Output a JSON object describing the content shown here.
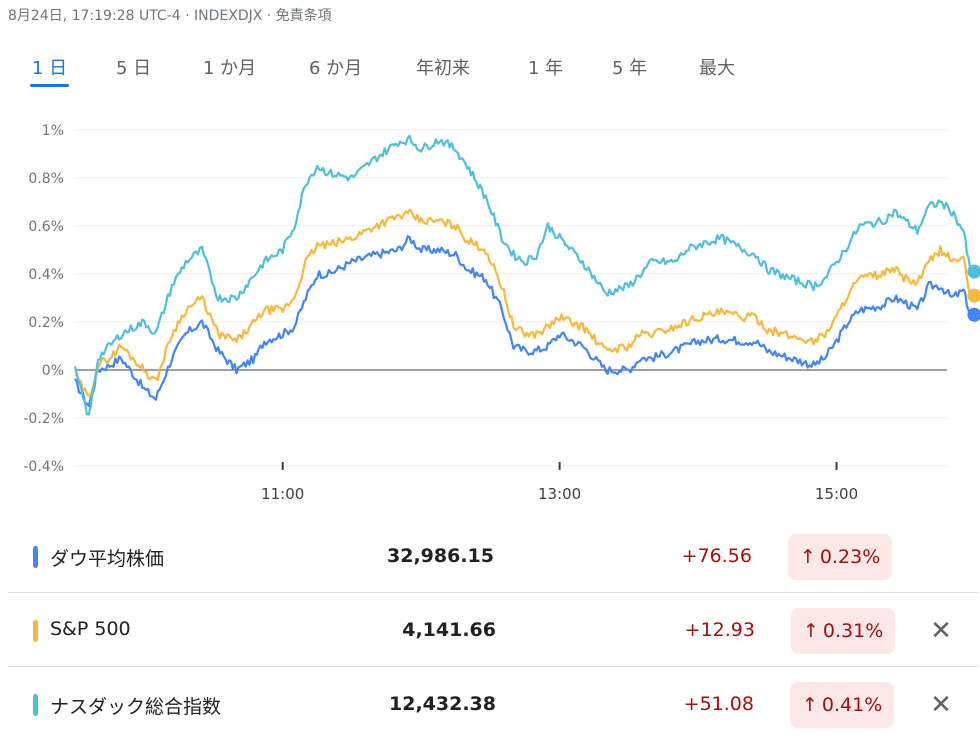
{
  "header": {
    "text": "8月24日, 17:19:28 UTC-4 · INDEXDJX · 免責条項"
  },
  "tabs": [
    {
      "label": "1 日",
      "active": true
    },
    {
      "label": "5 日",
      "active": false
    },
    {
      "label": "1 か月",
      "active": false
    },
    {
      "label": "6 か月",
      "active": false
    },
    {
      "label": "年初来",
      "active": false
    },
    {
      "label": "1 年",
      "active": false
    },
    {
      "label": "5 年",
      "active": false
    },
    {
      "label": "最大",
      "active": false
    }
  ],
  "chart_data": {
    "type": "line",
    "xlabel": "",
    "ylabel": "",
    "x_ticks": [
      "11:00",
      "13:00",
      "15:00"
    ],
    "x_tick_minutes": [
      660,
      780,
      900
    ],
    "xlim_minutes": [
      570,
      960
    ],
    "y_ticks": [
      "1%",
      "0.8%",
      "0.6%",
      "0.4%",
      "0.2%",
      "0%",
      "-0.2%",
      "-0.4%"
    ],
    "y_tick_values": [
      1.0,
      0.8,
      0.6,
      0.4,
      0.2,
      0.0,
      -0.2,
      -0.4
    ],
    "ylim": [
      -0.4,
      1.0
    ],
    "zero_line": 0,
    "grid": true,
    "series": [
      {
        "name": "ダウ平均株価",
        "color": "#4285f4",
        "x": [
          570,
          576,
          580,
          585,
          590,
          600,
          605,
          612,
          618,
          625,
          632,
          640,
          648,
          652,
          660,
          665,
          670,
          675,
          680,
          690,
          700,
          710,
          715,
          720,
          728,
          735,
          740,
          748,
          755,
          760,
          765,
          770,
          775,
          780,
          790,
          800,
          810,
          815,
          820,
          830,
          835,
          840,
          850,
          860,
          865,
          870,
          880,
          890,
          895,
          900,
          905,
          910,
          920,
          925,
          930,
          935,
          940,
          945,
          950,
          955,
          958
        ],
        "values": [
          -0.05,
          -0.15,
          0.0,
          0.02,
          0.05,
          -0.08,
          -0.12,
          0.05,
          0.15,
          0.2,
          0.08,
          0.0,
          0.05,
          0.12,
          0.15,
          0.18,
          0.3,
          0.4,
          0.4,
          0.45,
          0.48,
          0.5,
          0.55,
          0.5,
          0.5,
          0.48,
          0.42,
          0.38,
          0.25,
          0.1,
          0.08,
          0.08,
          0.1,
          0.15,
          0.1,
          0.0,
          0.0,
          0.05,
          0.05,
          0.08,
          0.1,
          0.12,
          0.13,
          0.12,
          0.12,
          0.08,
          0.05,
          0.02,
          0.05,
          0.12,
          0.2,
          0.25,
          0.27,
          0.3,
          0.28,
          0.25,
          0.35,
          0.35,
          0.3,
          0.33,
          0.23
        ]
      },
      {
        "name": "S&P 500",
        "color": "#f6b93b",
        "x": [
          570,
          576,
          580,
          585,
          590,
          600,
          605,
          612,
          618,
          625,
          632,
          640,
          648,
          652,
          660,
          665,
          670,
          675,
          680,
          690,
          700,
          710,
          715,
          720,
          728,
          735,
          740,
          748,
          755,
          760,
          765,
          770,
          775,
          780,
          790,
          800,
          810,
          815,
          820,
          830,
          835,
          840,
          850,
          860,
          865,
          870,
          880,
          890,
          895,
          900,
          905,
          910,
          920,
          925,
          930,
          935,
          940,
          945,
          950,
          955,
          958
        ],
        "values": [
          -0.02,
          -0.12,
          0.02,
          0.05,
          0.1,
          0.0,
          -0.05,
          0.15,
          0.25,
          0.3,
          0.15,
          0.12,
          0.2,
          0.25,
          0.25,
          0.3,
          0.45,
          0.52,
          0.52,
          0.55,
          0.6,
          0.64,
          0.65,
          0.62,
          0.62,
          0.6,
          0.54,
          0.5,
          0.35,
          0.18,
          0.15,
          0.15,
          0.18,
          0.22,
          0.18,
          0.08,
          0.1,
          0.15,
          0.15,
          0.18,
          0.2,
          0.22,
          0.24,
          0.22,
          0.22,
          0.17,
          0.14,
          0.12,
          0.15,
          0.22,
          0.32,
          0.38,
          0.4,
          0.42,
          0.38,
          0.36,
          0.45,
          0.5,
          0.46,
          0.46,
          0.31
        ]
      },
      {
        "name": "ナスダック総合指数",
        "color": "#4ebfdc",
        "x": [
          570,
          576,
          580,
          585,
          590,
          600,
          605,
          612,
          618,
          625,
          632,
          640,
          648,
          652,
          660,
          665,
          670,
          675,
          680,
          690,
          700,
          710,
          715,
          720,
          728,
          735,
          740,
          748,
          755,
          760,
          765,
          770,
          775,
          780,
          790,
          800,
          810,
          815,
          820,
          830,
          835,
          840,
          850,
          860,
          865,
          870,
          880,
          890,
          895,
          900,
          905,
          910,
          920,
          925,
          930,
          935,
          940,
          945,
          950,
          955,
          958
        ],
        "values": [
          0.0,
          -0.2,
          0.05,
          0.1,
          0.15,
          0.2,
          0.15,
          0.35,
          0.45,
          0.5,
          0.3,
          0.3,
          0.4,
          0.45,
          0.5,
          0.6,
          0.78,
          0.85,
          0.82,
          0.8,
          0.88,
          0.95,
          0.96,
          0.92,
          0.96,
          0.92,
          0.85,
          0.72,
          0.55,
          0.48,
          0.45,
          0.48,
          0.6,
          0.55,
          0.45,
          0.32,
          0.35,
          0.4,
          0.45,
          0.45,
          0.5,
          0.52,
          0.55,
          0.5,
          0.48,
          0.42,
          0.38,
          0.35,
          0.38,
          0.45,
          0.52,
          0.6,
          0.62,
          0.66,
          0.62,
          0.58,
          0.68,
          0.7,
          0.66,
          0.58,
          0.41
        ]
      }
    ]
  },
  "indices": [
    {
      "name": "ダウ平均株価",
      "color": "#4285f4",
      "value": "32,986.15",
      "change": "+76.56",
      "pct": "0.23%",
      "arrow": "↑",
      "removable": false
    },
    {
      "name": "S&P 500",
      "color": "#f6b93b",
      "value": "4,141.66",
      "change": "+12.93",
      "pct": "0.31%",
      "arrow": "↑",
      "removable": true,
      "close": "✕"
    },
    {
      "name": "ナスダック総合指数",
      "color": "#4ebfdc",
      "value": "12,432.38",
      "change": "+51.08",
      "pct": "0.41%",
      "arrow": "↑",
      "removable": true,
      "close": "✕"
    }
  ]
}
